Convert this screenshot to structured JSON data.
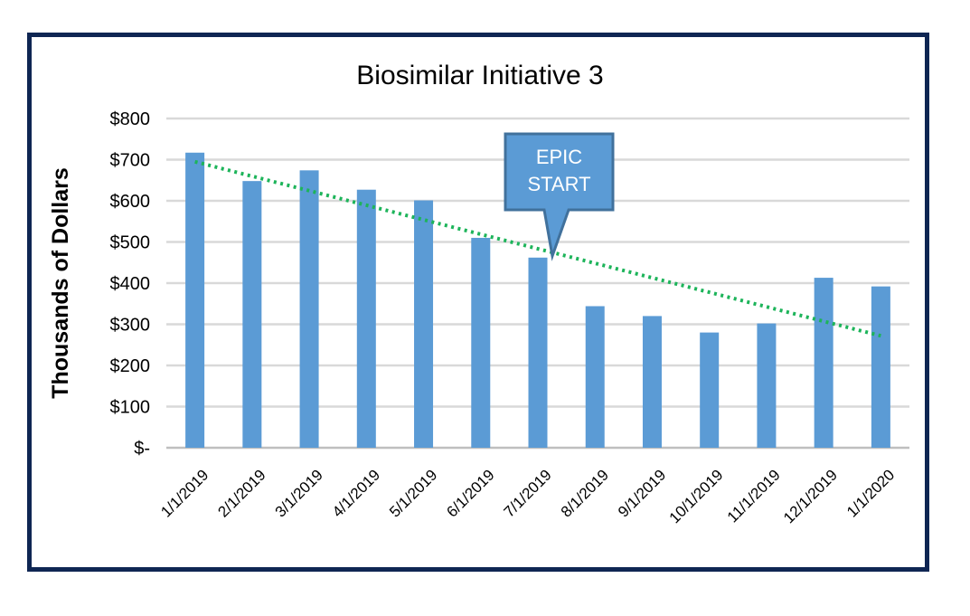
{
  "chart_data": {
    "type": "bar",
    "title": "Biosimilar Initiative 3",
    "xlabel": "",
    "ylabel": "Thousands of Dollars",
    "categories": [
      "1/1/2019",
      "2/1/2019",
      "3/1/2019",
      "4/1/2019",
      "5/1/2019",
      "6/1/2019",
      "7/1/2019",
      "8/1/2019",
      "9/1/2019",
      "10/1/2019",
      "11/1/2019",
      "12/1/2019",
      "1/1/2020"
    ],
    "values": [
      717,
      648,
      674,
      627,
      601,
      510,
      462,
      344,
      320,
      280,
      302,
      413,
      392
    ],
    "ylim": [
      0,
      800
    ],
    "yticks": [
      0,
      100,
      200,
      300,
      400,
      500,
      600,
      700,
      800
    ],
    "ytick_labels": [
      "$-",
      "$100",
      "$200",
      "$300",
      "$400",
      "$500",
      "$600",
      "$700",
      "$800"
    ],
    "grid": true,
    "bar_color": "#5b9bd5",
    "trendline": {
      "style": "dotted",
      "color": "#1db45a",
      "start": 695,
      "end": 272
    },
    "annotation": {
      "lines": [
        "EPIC",
        "START"
      ],
      "category": "7/1/2019",
      "fill": "#5b9bd5",
      "border": "#41719c"
    }
  }
}
